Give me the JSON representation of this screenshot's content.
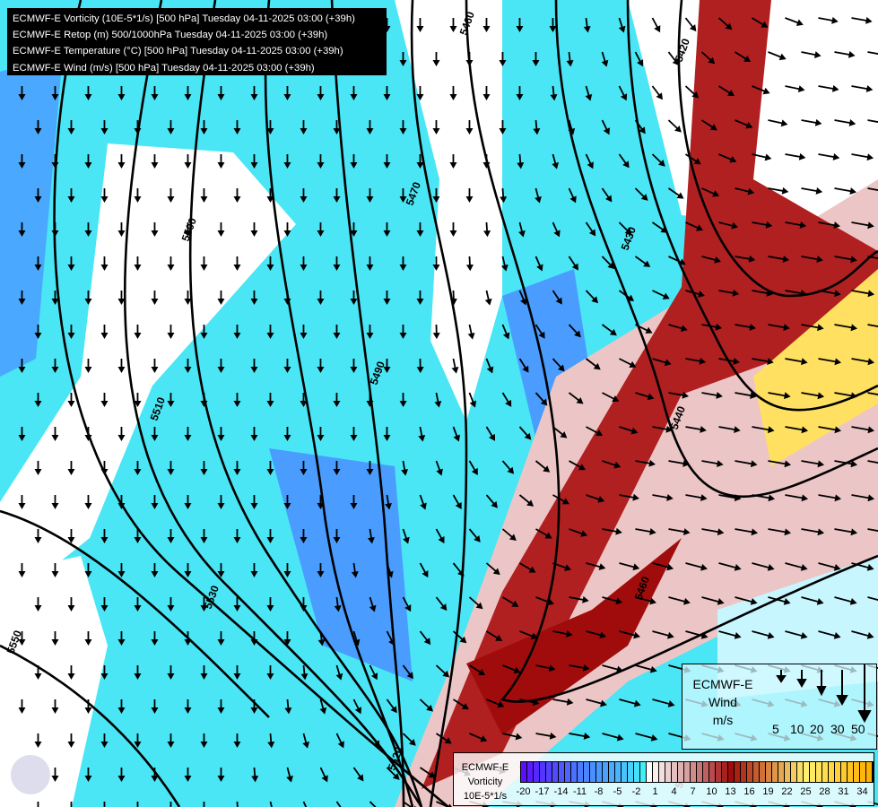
{
  "title_lines": [
    "ECMWF-E Vorticity (10E-5*1/s) [500 hPa] Tuesday 04-11-2025 03:00 (+39h)",
    "ECMWF-E Retop (m) 500/1000hPa Tuesday 04-11-2025 03:00 (+39h)",
    "ECMWF-E Temperature (°C) [500 hPa] Tuesday 04-11-2025 03:00 (+39h)",
    "ECMWF-E Wind (m/s) [500 hPa] Tuesday 04-11-2025 03:00 (+39h)"
  ],
  "contour_labels": [
    "5460",
    "5420",
    "5470",
    "5500",
    "5430",
    "5490",
    "5510",
    "5440",
    "5530",
    "5460",
    "5550",
    "5520",
    "5490"
  ],
  "wind_legend": {
    "lines": [
      "ECMWF-E",
      "Wind",
      "m/s"
    ],
    "speeds": [
      "5",
      "10",
      "20",
      "30",
      "50"
    ]
  },
  "vorticity_legend": {
    "lines": [
      "ECMWF-E",
      "Vorticity",
      "10E-5*1/s"
    ],
    "ticks": [
      "-20",
      "-17",
      "-14",
      "-11",
      "-8",
      "-5",
      "-2",
      "1",
      "4",
      "7",
      "10",
      "13",
      "16",
      "19",
      "22",
      "25",
      "28",
      "31",
      "34"
    ],
    "color_stops": [
      [
        -20,
        "#5a10ff"
      ],
      [
        -11,
        "#4a7cff"
      ],
      [
        -5,
        "#4ab4ff"
      ],
      [
        -1,
        "#40f0f8"
      ],
      [
        0,
        "#ffffff"
      ],
      [
        6,
        "#d8a0a0"
      ],
      [
        13,
        "#a00c0c"
      ],
      [
        19,
        "#d88440"
      ],
      [
        25,
        "#fff070"
      ],
      [
        35,
        "#ffb000"
      ]
    ]
  },
  "colors": {
    "cyan": "#4ae6f5",
    "blue": "#4a9cff",
    "white": "#ffffff",
    "red": "#a80808",
    "yellow": "#ffe060"
  }
}
